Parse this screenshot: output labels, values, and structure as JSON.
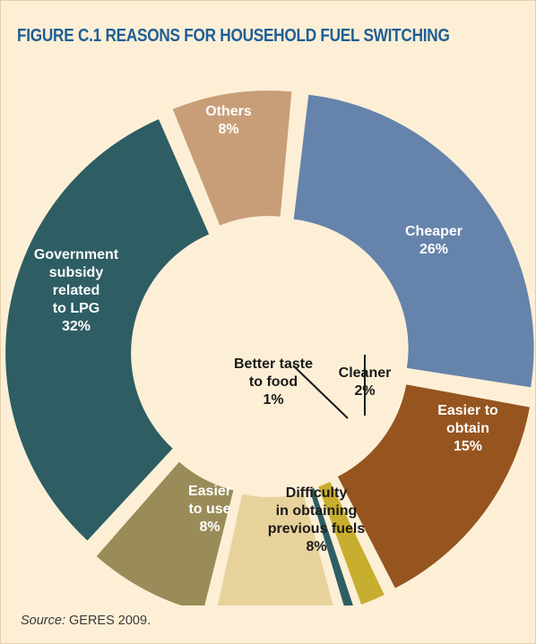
{
  "figure": {
    "title": "FIGURE C.1   REASONS FOR HOUSEHOLD FUEL SWITCHING",
    "source_label": "Source:",
    "source_text": " GERES 2009."
  },
  "chart_data": {
    "type": "pie",
    "style": "exploded-donut",
    "title": "FIGURE C.1 REASONS FOR HOUSEHOLD FUEL SWITCHING",
    "slices": [
      {
        "label": "Cheaper",
        "value": 26,
        "display": "26%",
        "color": "#6583ab",
        "label_lines": [
          "Cheaper",
          "26%"
        ],
        "label_color": "#ffffff"
      },
      {
        "label": "Easier to obtain",
        "value": 15,
        "display": "15%",
        "color": "#96541f",
        "label_lines": [
          "Easier to",
          "obtain",
          "15%"
        ],
        "label_color": "#ffffff"
      },
      {
        "label": "Cleaner",
        "value": 2,
        "display": "2%",
        "color": "#c8ae2e",
        "label_lines": [
          "Cleaner",
          "2%"
        ],
        "label_color": "#1a1a1a"
      },
      {
        "label": "Better taste to food",
        "value": 1,
        "display": "1%",
        "color": "#2e5d64",
        "label_lines": [
          "Better taste",
          "to food",
          "1%"
        ],
        "label_color": "#1a1a1a"
      },
      {
        "label": "Difficulty in obtaining previous fuels",
        "value": 8,
        "display": "8%",
        "color": "#e8d29c",
        "label_lines": [
          "Difficulty",
          "in obtaining",
          "previous fuels",
          "8%"
        ],
        "label_color": "#1a1a1a"
      },
      {
        "label": "Easier to use",
        "value": 8,
        "display": "8%",
        "color": "#9a8c58",
        "label_lines": [
          "Easier",
          "to use",
          "8%"
        ],
        "label_color": "#ffffff"
      },
      {
        "label": "Government subsidy related to LPG",
        "value": 32,
        "display": "32%",
        "color": "#2e5d64",
        "label_lines": [
          "Government",
          "subsidy",
          "related",
          "to LPG",
          "32%"
        ],
        "label_color": "#ffffff"
      },
      {
        "label": "Others",
        "value": 8,
        "display": "8%",
        "color": "#c89e78",
        "label_lines": [
          "Others",
          "8%"
        ],
        "label_color": "#ffffff"
      }
    ],
    "legend": "none"
  }
}
